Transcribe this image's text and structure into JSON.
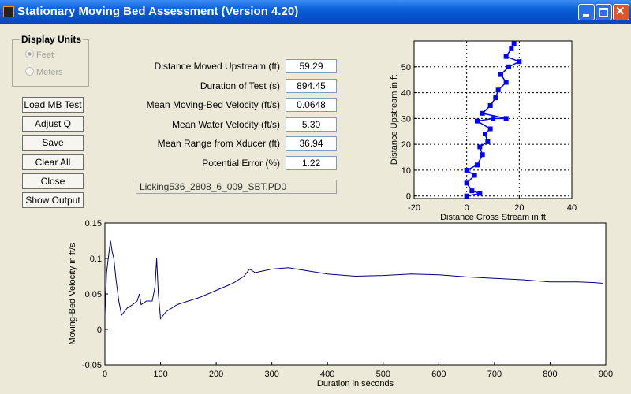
{
  "window": {
    "title": "Stationary Moving Bed Assessment  (Version 4.20)"
  },
  "display_units": {
    "title": "Display Units",
    "options": [
      "Feet",
      "Meters"
    ],
    "selected": 0
  },
  "buttons": [
    "Load MB Test",
    "Adjust Q",
    "Save",
    "Clear All",
    "Close",
    "Show Output"
  ],
  "fields": [
    {
      "label": "Distance Moved Upstream (ft)",
      "value": "59.29"
    },
    {
      "label": "Duration of Test (s)",
      "value": "894.45"
    },
    {
      "label": "Mean Moving-Bed Velocity (ft/s)",
      "value": "0.0648"
    },
    {
      "label": "Mean Water Velocity (ft/s)",
      "value": "5.30"
    },
    {
      "label": "Mean Range from Xducer (ft)",
      "value": "36.94"
    },
    {
      "label": "Potential Error (%)",
      "value": "1.22"
    }
  ],
  "filename": "Licking536_2808_6_009_SBT.PD0",
  "chart_data": [
    {
      "type": "line",
      "xlabel": "Distance Cross Stream in ft",
      "ylabel": "Distance Upstream in ft",
      "x": [
        0,
        5,
        2,
        0,
        3,
        0,
        4,
        6,
        5,
        8,
        7,
        9,
        4,
        10,
        15,
        6,
        9,
        11,
        12,
        15,
        13,
        16,
        20,
        15,
        17,
        18
      ],
      "series": [
        {
          "color": "#0000ff",
          "marker": true,
          "values": [
            0,
            1,
            2,
            5,
            8,
            10,
            12,
            16,
            19,
            21,
            24,
            26,
            29,
            30,
            30,
            32,
            35,
            38,
            41,
            44,
            47,
            50,
            52,
            54,
            57,
            59
          ]
        }
      ],
      "xlim": [
        -20,
        40
      ],
      "xticks": [
        -20,
        0,
        20,
        40
      ],
      "ylim": [
        -1,
        60
      ],
      "yticks": [
        0,
        10,
        20,
        30,
        40,
        50
      ],
      "grid": true
    },
    {
      "type": "line",
      "xlabel": "Duration in seconds",
      "ylabel": "Moving-Bed Velocity in ft/s",
      "x": [
        0,
        3,
        6,
        10,
        13,
        16,
        20,
        25,
        30,
        40,
        50,
        58,
        62,
        65,
        75,
        85,
        90,
        93,
        96,
        100,
        110,
        130,
        150,
        170,
        200,
        230,
        250,
        260,
        270,
        300,
        330,
        360,
        400,
        450,
        500,
        550,
        600,
        650,
        700,
        750,
        800,
        850,
        880,
        894
      ],
      "series": [
        {
          "color": "#00007f",
          "marker": false,
          "values": [
            0.02,
            0.08,
            0.1,
            0.125,
            0.11,
            0.1,
            0.07,
            0.04,
            0.02,
            0.03,
            0.035,
            0.04,
            0.05,
            0.035,
            0.04,
            0.04,
            0.06,
            0.1,
            0.05,
            0.015,
            0.025,
            0.035,
            0.04,
            0.045,
            0.055,
            0.065,
            0.075,
            0.085,
            0.08,
            0.085,
            0.087,
            0.083,
            0.078,
            0.075,
            0.076,
            0.078,
            0.077,
            0.074,
            0.072,
            0.07,
            0.067,
            0.067,
            0.066,
            0.065
          ]
        }
      ],
      "xlim": [
        0,
        900
      ],
      "xticks": [
        0,
        100,
        200,
        300,
        400,
        500,
        600,
        700,
        800,
        900
      ],
      "ylim": [
        -0.05,
        0.15
      ],
      "yticks": [
        -0.05,
        0,
        0.05,
        0.1,
        0.15
      ],
      "grid": false
    }
  ]
}
